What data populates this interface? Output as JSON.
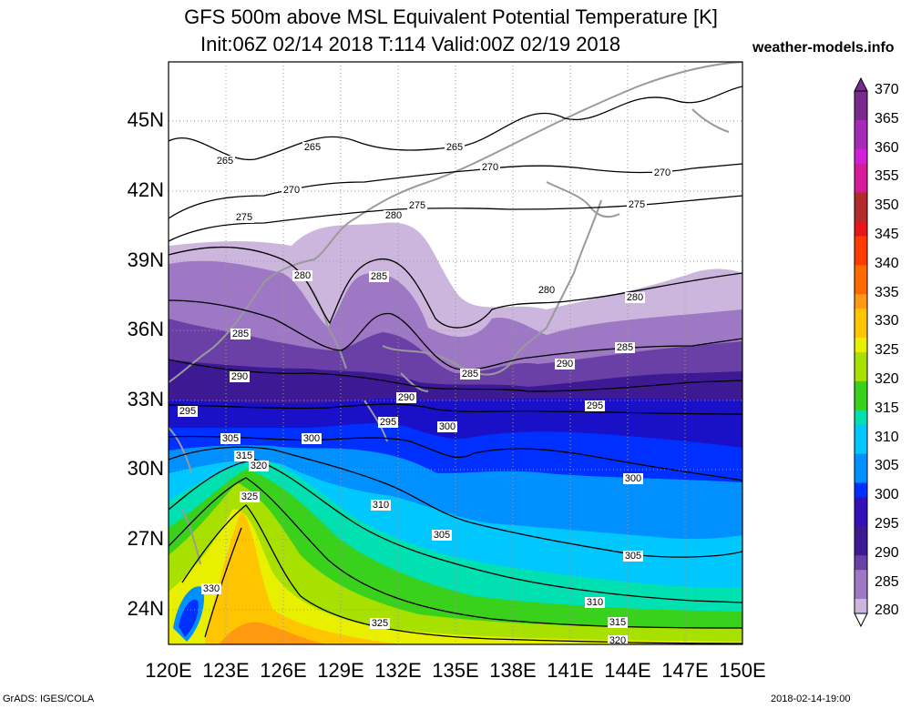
{
  "title_line1": "GFS 500m above MSL Equivalent Potential Temperature [K]",
  "title_line2": "Init:06Z 02/14 2018 T:114 Valid:00Z 02/19 2018",
  "site": "weather-models.info",
  "footer_left": "GrADS: IGES/COLA",
  "footer_right": "2018-02-14-19:00",
  "lat_labels": [
    "45N",
    "42N",
    "39N",
    "36N",
    "33N",
    "30N",
    "27N",
    "24N"
  ],
  "lon_labels": [
    "120E",
    "123E",
    "126E",
    "129E",
    "132E",
    "135E",
    "138E",
    "141E",
    "144E",
    "147E",
    "150E"
  ],
  "colorbar_labels": [
    "370",
    "365",
    "360",
    "355",
    "350",
    "345",
    "340",
    "335",
    "330",
    "325",
    "320",
    "315",
    "310",
    "305",
    "300",
    "295",
    "290",
    "285",
    "280"
  ],
  "colorbar_colors": [
    "#7a2a8e",
    "#a52ab5",
    "#d21fd9",
    "#d51a9a",
    "#b32b2b",
    "#e8161a",
    "#ff3c00",
    "#ff6a00",
    "#ff9a10",
    "#ffc500",
    "#e8f000",
    "#a8e000",
    "#39d11c",
    "#00e0b0",
    "#00c8ff",
    "#0090ff",
    "#0030ff",
    "#3310b8",
    "#3d1a94",
    "#6a3fa6",
    "#9e78c4",
    "#cdb6de"
  ],
  "contour_labels": [
    "265",
    "265",
    "265",
    "270",
    "270",
    "270",
    "275",
    "275",
    "275",
    "280",
    "280",
    "280",
    "280",
    "285",
    "285",
    "285",
    "285",
    "290",
    "290",
    "290",
    "295",
    "295",
    "295",
    "300",
    "300",
    "300",
    "305",
    "305",
    "305",
    "310",
    "310",
    "315",
    "315",
    "320",
    "320",
    "325",
    "325",
    "330"
  ]
}
